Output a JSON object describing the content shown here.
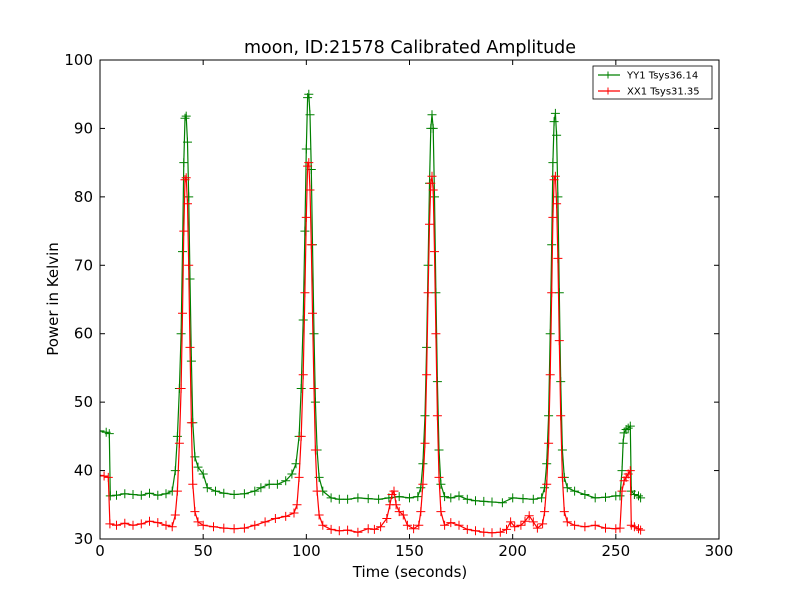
{
  "chart_data": {
    "type": "line",
    "title": "moon, ID:21578 Calibrated Amplitude",
    "xlabel": "Time (seconds)",
    "ylabel": "Power in Kelvin",
    "xlim": [
      0,
      300
    ],
    "ylim": [
      30,
      100
    ],
    "xticks": [
      "0",
      "50",
      "100",
      "150",
      "200",
      "250",
      "300"
    ],
    "yticks": [
      "30",
      "40",
      "50",
      "60",
      "70",
      "80",
      "90",
      "100"
    ],
    "grid": false,
    "legend_position": "top-right",
    "series": [
      {
        "name": "YY1 Tsys36.14",
        "color": "#008000",
        "marker": "plus",
        "points": [
          [
            0,
            45.8
          ],
          [
            3,
            45.6
          ],
          [
            4.5,
            45.4
          ],
          [
            5,
            36.3
          ],
          [
            8,
            36.4
          ],
          [
            12,
            36.6
          ],
          [
            16,
            36.5
          ],
          [
            20,
            36.4
          ],
          [
            24,
            36.7
          ],
          [
            28,
            36.4
          ],
          [
            32,
            36.6
          ],
          [
            35,
            37.0
          ],
          [
            36.5,
            40.0
          ],
          [
            37.5,
            45.0
          ],
          [
            38.5,
            52.0
          ],
          [
            39.3,
            60.0
          ],
          [
            40,
            72.0
          ],
          [
            40.6,
            85.0
          ],
          [
            41.2,
            91.5
          ],
          [
            41.8,
            91.8
          ],
          [
            42.4,
            88.0
          ],
          [
            43,
            80.0
          ],
          [
            43.6,
            68.0
          ],
          [
            44.3,
            56.0
          ],
          [
            45,
            47.0
          ],
          [
            46,
            42.0
          ],
          [
            47.5,
            40.5
          ],
          [
            50,
            39.5
          ],
          [
            52,
            37.5
          ],
          [
            56,
            37.0
          ],
          [
            60,
            36.7
          ],
          [
            65,
            36.5
          ],
          [
            70,
            36.6
          ],
          [
            75,
            37.0
          ],
          [
            78,
            37.5
          ],
          [
            82,
            38.0
          ],
          [
            86,
            38.0
          ],
          [
            90,
            38.5
          ],
          [
            93,
            39.5
          ],
          [
            95,
            41.0
          ],
          [
            96.5,
            45.0
          ],
          [
            97.5,
            52.0
          ],
          [
            98.5,
            62.0
          ],
          [
            99.3,
            75.0
          ],
          [
            100,
            87.0
          ],
          [
            100.6,
            94.5
          ],
          [
            101.2,
            95.0
          ],
          [
            101.8,
            92.0
          ],
          [
            102.4,
            84.0
          ],
          [
            103,
            73.0
          ],
          [
            103.7,
            60.0
          ],
          [
            104.4,
            50.0
          ],
          [
            105.2,
            43.0
          ],
          [
            106.2,
            39.0
          ],
          [
            108,
            37.0
          ],
          [
            112,
            36.0
          ],
          [
            116,
            35.8
          ],
          [
            120,
            35.8
          ],
          [
            125,
            36.0
          ],
          [
            130,
            35.9
          ],
          [
            135,
            35.8
          ],
          [
            140,
            36.0
          ],
          [
            145,
            36.2
          ],
          [
            150,
            36.0
          ],
          [
            154,
            36.2
          ],
          [
            155.5,
            37.5
          ],
          [
            156.5,
            41.0
          ],
          [
            157.5,
            48.0
          ],
          [
            158.3,
            58.0
          ],
          [
            159,
            70.0
          ],
          [
            159.7,
            82.0
          ],
          [
            160.3,
            90.0
          ],
          [
            160.9,
            92.0
          ],
          [
            161.5,
            90.0
          ],
          [
            162.1,
            80.0
          ],
          [
            162.8,
            66.0
          ],
          [
            163.5,
            53.0
          ],
          [
            164.3,
            43.0
          ],
          [
            165.2,
            38.0
          ],
          [
            167,
            36.2
          ],
          [
            170,
            36.0
          ],
          [
            174,
            36.3
          ],
          [
            178,
            35.8
          ],
          [
            182,
            35.6
          ],
          [
            186,
            35.5
          ],
          [
            190,
            35.4
          ],
          [
            195,
            35.3
          ],
          [
            200,
            36.0
          ],
          [
            205,
            35.9
          ],
          [
            210,
            35.8
          ],
          [
            214,
            36.0
          ],
          [
            215.5,
            37.5
          ],
          [
            216.5,
            41.0
          ],
          [
            217.4,
            48.0
          ],
          [
            218.2,
            60.0
          ],
          [
            218.9,
            73.0
          ],
          [
            219.5,
            85.0
          ],
          [
            220.1,
            91.0
          ],
          [
            220.7,
            92.2
          ],
          [
            221.3,
            89.0
          ],
          [
            221.9,
            80.0
          ],
          [
            222.6,
            66.0
          ],
          [
            223.3,
            53.0
          ],
          [
            224.1,
            43.0
          ],
          [
            225,
            39.0
          ],
          [
            226.5,
            37.5
          ],
          [
            230,
            37.0
          ],
          [
            235,
            36.5
          ],
          [
            240,
            36.0
          ],
          [
            245,
            36.1
          ],
          [
            250,
            36.3
          ],
          [
            252,
            36.3
          ],
          [
            253,
            40.0
          ],
          [
            253.5,
            44.0
          ],
          [
            254,
            45.5
          ],
          [
            255,
            46.0
          ],
          [
            256,
            46.2
          ],
          [
            257,
            46.5
          ],
          [
            257.5,
            37.0
          ],
          [
            259,
            36.5
          ],
          [
            261,
            36.3
          ],
          [
            262,
            36.0
          ]
        ]
      },
      {
        "name": "XX1 Tsys31.35",
        "color": "#ff0000",
        "marker": "plus",
        "points": [
          [
            0,
            39.3
          ],
          [
            2,
            39.2
          ],
          [
            4,
            39.0
          ],
          [
            4.8,
            32.2
          ],
          [
            8,
            32.0
          ],
          [
            12,
            32.3
          ],
          [
            16,
            32.0
          ],
          [
            20,
            32.2
          ],
          [
            24,
            32.6
          ],
          [
            28,
            32.4
          ],
          [
            32,
            32.0
          ],
          [
            35,
            31.8
          ],
          [
            36.5,
            33.5
          ],
          [
            37.5,
            37.0
          ],
          [
            38.5,
            44.0
          ],
          [
            39.3,
            52.0
          ],
          [
            40,
            63.0
          ],
          [
            40.6,
            75.0
          ],
          [
            41.2,
            82.5
          ],
          [
            41.8,
            82.8
          ],
          [
            42.4,
            79.0
          ],
          [
            43,
            70.0
          ],
          [
            43.6,
            58.0
          ],
          [
            44.3,
            47.0
          ],
          [
            45,
            38.0
          ],
          [
            46,
            34.0
          ],
          [
            47.5,
            32.5
          ],
          [
            50,
            32.0
          ],
          [
            55,
            31.8
          ],
          [
            60,
            31.6
          ],
          [
            65,
            31.5
          ],
          [
            70,
            31.6
          ],
          [
            75,
            32.0
          ],
          [
            80,
            32.5
          ],
          [
            85,
            33.0
          ],
          [
            90,
            33.3
          ],
          [
            94,
            33.8
          ],
          [
            95.5,
            35.0
          ],
          [
            96.5,
            39.0
          ],
          [
            97.5,
            45.0
          ],
          [
            98.5,
            54.0
          ],
          [
            99.3,
            66.0
          ],
          [
            100,
            77.0
          ],
          [
            100.6,
            84.5
          ],
          [
            101.2,
            85.0
          ],
          [
            101.8,
            81.0
          ],
          [
            102.4,
            73.0
          ],
          [
            103,
            63.0
          ],
          [
            103.7,
            52.0
          ],
          [
            104.4,
            43.0
          ],
          [
            105.2,
            37.0
          ],
          [
            106.2,
            33.5
          ],
          [
            108,
            32.0
          ],
          [
            112,
            31.4
          ],
          [
            116,
            31.2
          ],
          [
            120,
            31.3
          ],
          [
            125,
            31.0
          ],
          [
            130,
            31.5
          ],
          [
            133,
            31.4
          ],
          [
            136,
            31.8
          ],
          [
            139,
            33.0
          ],
          [
            140.5,
            35.0
          ],
          [
            141.5,
            36.5
          ],
          [
            142.5,
            37.0
          ],
          [
            143.5,
            35.0
          ],
          [
            145,
            34.0
          ],
          [
            147,
            33.5
          ],
          [
            149,
            32.0
          ],
          [
            152,
            31.5
          ],
          [
            154.5,
            32.0
          ],
          [
            155.5,
            34.0
          ],
          [
            156.5,
            38.0
          ],
          [
            157.5,
            44.0
          ],
          [
            158.3,
            54.0
          ],
          [
            159,
            66.0
          ],
          [
            159.7,
            76.0
          ],
          [
            160.3,
            82.0
          ],
          [
            160.9,
            83.0
          ],
          [
            161.5,
            81.0
          ],
          [
            162.1,
            72.0
          ],
          [
            162.8,
            60.0
          ],
          [
            163.5,
            48.0
          ],
          [
            164.3,
            39.0
          ],
          [
            165.2,
            34.0
          ],
          [
            167,
            32.0
          ],
          [
            170,
            32.4
          ],
          [
            174,
            32.0
          ],
          [
            178,
            31.4
          ],
          [
            182,
            31.2
          ],
          [
            186,
            31.0
          ],
          [
            190,
            30.9
          ],
          [
            194,
            31.0
          ],
          [
            197,
            31.4
          ],
          [
            199,
            32.5
          ],
          [
            201,
            31.8
          ],
          [
            204,
            32.0
          ],
          [
            206,
            32.6
          ],
          [
            208,
            33.4
          ],
          [
            210,
            32.5
          ],
          [
            212,
            31.6
          ],
          [
            214.5,
            32.2
          ],
          [
            215.5,
            34.0
          ],
          [
            216.5,
            38.0
          ],
          [
            217.4,
            44.0
          ],
          [
            218.2,
            54.0
          ],
          [
            218.9,
            66.0
          ],
          [
            219.5,
            77.0
          ],
          [
            220.1,
            82.5
          ],
          [
            220.7,
            83.0
          ],
          [
            221.3,
            79.0
          ],
          [
            221.9,
            71.0
          ],
          [
            222.6,
            59.0
          ],
          [
            223.3,
            48.0
          ],
          [
            224.1,
            39.0
          ],
          [
            225,
            34.0
          ],
          [
            226.5,
            32.5
          ],
          [
            230,
            32.0
          ],
          [
            235,
            31.8
          ],
          [
            240,
            32.0
          ],
          [
            245,
            31.6
          ],
          [
            250,
            31.5
          ],
          [
            252,
            31.6
          ],
          [
            253,
            37.0
          ],
          [
            254,
            38.5
          ],
          [
            255,
            39.0
          ],
          [
            256,
            39.5
          ],
          [
            257,
            40.0
          ],
          [
            257.5,
            32.0
          ],
          [
            259,
            31.8
          ],
          [
            261,
            31.5
          ],
          [
            262,
            31.3
          ]
        ]
      }
    ]
  }
}
